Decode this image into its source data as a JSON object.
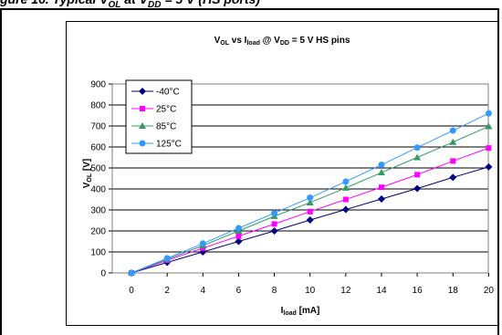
{
  "caption": {
    "parts": [
      {
        "t": "gure 16. Typical V",
        "sub": false
      },
      {
        "t": "OL",
        "sub": true
      },
      {
        "t": " at V",
        "sub": false
      },
      {
        "t": "DD",
        "sub": true
      },
      {
        "t": " = 5 V (HS ports)",
        "sub": false
      }
    ]
  },
  "chart_data": {
    "type": "line",
    "title": {
      "parts": [
        {
          "t": "V",
          "sub": false
        },
        {
          "t": "OL",
          "sub": true
        },
        {
          "t": " vs I",
          "sub": false
        },
        {
          "t": "load",
          "sub": true
        },
        {
          "t": " @ V",
          "sub": false
        },
        {
          "t": "DD",
          "sub": true
        },
        {
          "t": " = 5 V HS pins",
          "sub": false
        }
      ]
    },
    "xlabel": {
      "parts": [
        {
          "t": "I",
          "sub": false
        },
        {
          "t": "load",
          "sub": true
        },
        {
          "t": " [mA]",
          "sub": false
        }
      ]
    },
    "ylabel": {
      "parts": [
        {
          "t": "V",
          "sub": false
        },
        {
          "t": "OL",
          "sub": true
        },
        {
          "t": " [V]",
          "sub": false
        }
      ]
    },
    "x": [
      0,
      2,
      4,
      6,
      8,
      10,
      12,
      14,
      16,
      18,
      20
    ],
    "xlim": [
      0,
      20
    ],
    "x_ticks": [
      "0",
      "2",
      "4",
      "6",
      "8",
      "10",
      "12",
      "14",
      "16",
      "18",
      "20"
    ],
    "ylim": [
      0,
      900
    ],
    "y_ticks": [
      "0",
      "100",
      "200",
      "300",
      "400",
      "500",
      "600",
      "700",
      "800",
      "900"
    ],
    "grid": true,
    "legend_position": "top-left",
    "series": [
      {
        "name": "-40°C",
        "color": "#000080",
        "marker": "diamond",
        "values": [
          0,
          50,
          100,
          150,
          200,
          252,
          302,
          352,
          402,
          455,
          505
        ]
      },
      {
        "name": "25°C",
        "color": "#ff00ff",
        "marker": "square",
        "values": [
          0,
          60,
          118,
          175,
          233,
          292,
          350,
          408,
          468,
          533,
          595
        ]
      },
      {
        "name": "85°C",
        "color": "#339966",
        "marker": "triangle",
        "values": [
          0,
          65,
          130,
          200,
          270,
          335,
          405,
          478,
          550,
          623,
          698
        ]
      },
      {
        "name": "125°C",
        "color": "#3399ff",
        "marker": "circle",
        "values": [
          0,
          70,
          140,
          213,
          285,
          358,
          435,
          515,
          597,
          678,
          760
        ]
      }
    ]
  }
}
